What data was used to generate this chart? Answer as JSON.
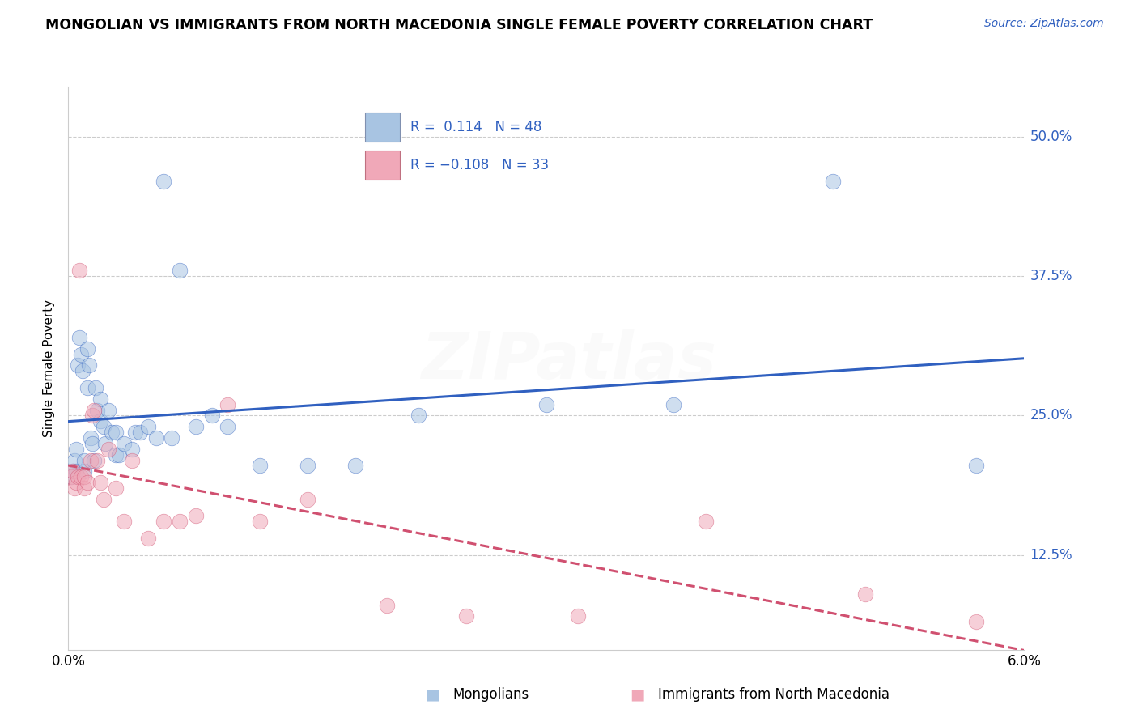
{
  "title": "MONGOLIAN VS IMMIGRANTS FROM NORTH MACEDONIA SINGLE FEMALE POVERTY CORRELATION CHART",
  "source": "Source: ZipAtlas.com",
  "ylabel": "Single Female Poverty",
  "ytick_values": [
    0.125,
    0.25,
    0.375,
    0.5
  ],
  "ytick_labels": [
    "12.5%",
    "25.0%",
    "37.5%",
    "50.0%"
  ],
  "xtick_values": [
    0.0,
    0.06
  ],
  "xtick_labels": [
    "0.0%",
    "6.0%"
  ],
  "xlim": [
    0.0,
    0.06
  ],
  "ylim": [
    0.04,
    0.545
  ],
  "R1": 0.114,
  "N1": 48,
  "R2": -0.108,
  "N2": 33,
  "color_blue": "#a8c4e2",
  "color_pink": "#f0a8b8",
  "line_blue": "#3060c0",
  "line_pink": "#d05070",
  "legend_label1": "Mongolians",
  "legend_label2": "Immigrants from North Macedonia",
  "scatter_size": 180,
  "scatter_alpha": 0.55,
  "title_fontsize": 12.5,
  "source_fontsize": 10,
  "tick_fontsize": 12,
  "ylabel_fontsize": 11,
  "legend_fontsize": 12,
  "watermark_text": "ZIPatlas",
  "watermark_alpha": 0.1,
  "grid_color": "#cccccc",
  "background_color": "#ffffff",
  "mon_x": [
    0.0002,
    0.0003,
    0.0004,
    0.0005,
    0.0005,
    0.0006,
    0.0007,
    0.0008,
    0.0009,
    0.001,
    0.001,
    0.0012,
    0.0012,
    0.0013,
    0.0014,
    0.0015,
    0.0016,
    0.0017,
    0.0018,
    0.002,
    0.002,
    0.0022,
    0.0023,
    0.0025,
    0.0027,
    0.003,
    0.003,
    0.0032,
    0.0035,
    0.004,
    0.0042,
    0.0045,
    0.005,
    0.0055,
    0.006,
    0.0065,
    0.007,
    0.008,
    0.009,
    0.01,
    0.012,
    0.015,
    0.018,
    0.022,
    0.03,
    0.038,
    0.048,
    0.057
  ],
  "mon_y": [
    0.195,
    0.2,
    0.21,
    0.22,
    0.2,
    0.295,
    0.32,
    0.305,
    0.29,
    0.2,
    0.21,
    0.275,
    0.31,
    0.295,
    0.23,
    0.225,
    0.21,
    0.275,
    0.255,
    0.265,
    0.245,
    0.24,
    0.225,
    0.255,
    0.235,
    0.215,
    0.235,
    0.215,
    0.225,
    0.22,
    0.235,
    0.235,
    0.24,
    0.23,
    0.46,
    0.23,
    0.38,
    0.24,
    0.25,
    0.24,
    0.205,
    0.205,
    0.205,
    0.25,
    0.26,
    0.26,
    0.46,
    0.205
  ],
  "mac_x": [
    0.0002,
    0.0003,
    0.0004,
    0.0005,
    0.0006,
    0.0007,
    0.0008,
    0.001,
    0.001,
    0.0012,
    0.0014,
    0.0015,
    0.0016,
    0.0018,
    0.002,
    0.0022,
    0.0025,
    0.003,
    0.0035,
    0.004,
    0.005,
    0.006,
    0.007,
    0.008,
    0.01,
    0.012,
    0.015,
    0.02,
    0.025,
    0.032,
    0.04,
    0.05,
    0.057
  ],
  "mac_y": [
    0.195,
    0.2,
    0.185,
    0.19,
    0.195,
    0.38,
    0.195,
    0.185,
    0.195,
    0.19,
    0.21,
    0.25,
    0.255,
    0.21,
    0.19,
    0.175,
    0.22,
    0.185,
    0.155,
    0.21,
    0.14,
    0.155,
    0.155,
    0.16,
    0.26,
    0.155,
    0.175,
    0.08,
    0.07,
    0.07,
    0.155,
    0.09,
    0.065
  ]
}
